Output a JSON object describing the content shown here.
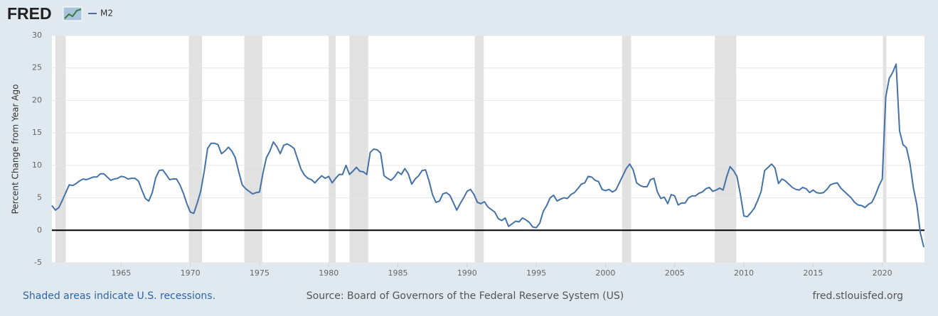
{
  "chart_data": {
    "type": "line",
    "brand": "FRED",
    "y_label": "Percent Change from Year Ago",
    "footer_left": "Shaded areas indicate U.S. recessions.",
    "footer_center": "Source: Board of Governors of the Federal Reserve System (US)",
    "footer_right": "fred.stlouisfed.org",
    "xlim": [
      1960,
      2023.05
    ],
    "ylim": [
      -5,
      30
    ],
    "xticks": [
      1965,
      1970,
      1975,
      1980,
      1985,
      1990,
      1995,
      2000,
      2005,
      2010,
      2015,
      2020
    ],
    "yticks": [
      -5,
      0,
      5,
      10,
      15,
      20,
      25,
      30
    ],
    "grid": true,
    "hline": 0,
    "recessions": [
      [
        1960.25,
        1961.0
      ],
      [
        1969.9,
        1970.85
      ],
      [
        1973.9,
        1975.2
      ],
      [
        1980.0,
        1980.5
      ],
      [
        1981.5,
        1982.85
      ],
      [
        1990.55,
        1991.2
      ],
      [
        2001.2,
        2001.85
      ],
      [
        2007.9,
        2009.45
      ],
      [
        2020.05,
        2020.3
      ]
    ],
    "x": [
      1960,
      1960.25,
      1960.5,
      1960.75,
      1961,
      1961.25,
      1961.5,
      1961.75,
      1962,
      1962.25,
      1962.5,
      1962.75,
      1963,
      1963.25,
      1963.5,
      1963.75,
      1964,
      1964.25,
      1964.5,
      1964.75,
      1965,
      1965.25,
      1965.5,
      1965.75,
      1966,
      1966.25,
      1966.5,
      1966.75,
      1967,
      1967.25,
      1967.5,
      1967.75,
      1968,
      1968.25,
      1968.5,
      1968.75,
      1969,
      1969.25,
      1969.5,
      1969.75,
      1970,
      1970.25,
      1970.5,
      1970.75,
      1971,
      1971.25,
      1971.5,
      1971.75,
      1972,
      1972.25,
      1972.5,
      1972.75,
      1973,
      1973.25,
      1973.5,
      1973.75,
      1974,
      1974.25,
      1974.5,
      1974.75,
      1975,
      1975.25,
      1975.5,
      1975.75,
      1976,
      1976.25,
      1976.5,
      1976.75,
      1977,
      1977.25,
      1977.5,
      1977.75,
      1978,
      1978.25,
      1978.5,
      1978.75,
      1979,
      1979.25,
      1979.5,
      1979.75,
      1980,
      1980.25,
      1980.5,
      1980.75,
      1981,
      1981.25,
      1981.5,
      1981.75,
      1982,
      1982.25,
      1982.5,
      1982.75,
      1983,
      1983.25,
      1983.5,
      1983.75,
      1984,
      1984.25,
      1984.5,
      1984.75,
      1985,
      1985.25,
      1985.5,
      1985.75,
      1986,
      1986.25,
      1986.5,
      1986.75,
      1987,
      1987.25,
      1987.5,
      1987.75,
      1988,
      1988.25,
      1988.5,
      1988.75,
      1989,
      1989.25,
      1989.5,
      1989.75,
      1990,
      1990.25,
      1990.5,
      1990.75,
      1991,
      1991.25,
      1991.5,
      1991.75,
      1992,
      1992.25,
      1992.5,
      1992.75,
      1993,
      1993.25,
      1993.5,
      1993.75,
      1994,
      1994.25,
      1994.5,
      1994.75,
      1995,
      1995.25,
      1995.5,
      1995.75,
      1996,
      1996.25,
      1996.5,
      1996.75,
      1997,
      1997.25,
      1997.5,
      1997.75,
      1998,
      1998.25,
      1998.5,
      1998.75,
      1999,
      1999.25,
      1999.5,
      1999.75,
      2000,
      2000.25,
      2000.5,
      2000.75,
      2001,
      2001.25,
      2001.5,
      2001.75,
      2002,
      2002.25,
      2002.5,
      2002.75,
      2003,
      2003.25,
      2003.5,
      2003.75,
      2004,
      2004.25,
      2004.5,
      2004.75,
      2005,
      2005.25,
      2005.5,
      2005.75,
      2006,
      2006.25,
      2006.5,
      2006.75,
      2007,
      2007.25,
      2007.5,
      2007.75,
      2008,
      2008.25,
      2008.5,
      2008.75,
      2009,
      2009.25,
      2009.5,
      2009.75,
      2010,
      2010.25,
      2010.5,
      2010.75,
      2011,
      2011.25,
      2011.5,
      2011.75,
      2012,
      2012.25,
      2012.5,
      2012.75,
      2013,
      2013.25,
      2013.5,
      2013.75,
      2014,
      2014.25,
      2014.5,
      2014.75,
      2015,
      2015.25,
      2015.5,
      2015.75,
      2016,
      2016.25,
      2016.5,
      2016.75,
      2017,
      2017.25,
      2017.5,
      2017.75,
      2018,
      2018.25,
      2018.5,
      2018.75,
      2019,
      2019.25,
      2019.5,
      2019.75,
      2020,
      2020.25,
      2020.5,
      2020.75,
      2021,
      2021.25,
      2021.5,
      2021.75,
      2022,
      2022.25,
      2022.5,
      2022.75,
      2023
    ],
    "series": [
      {
        "name": "M2",
        "color": "#4572a7",
        "values": [
          3.8,
          3.1,
          3.5,
          4.6,
          5.8,
          7.0,
          6.9,
          7.2,
          7.6,
          7.9,
          7.8,
          8.0,
          8.2,
          8.2,
          8.7,
          8.7,
          8.2,
          7.7,
          7.9,
          8.0,
          8.3,
          8.2,
          7.9,
          8.0,
          8.0,
          7.6,
          6.2,
          4.9,
          4.5,
          5.8,
          8.1,
          9.2,
          9.3,
          8.6,
          7.8,
          7.9,
          7.9,
          7.0,
          5.7,
          4.1,
          2.8,
          2.6,
          4.2,
          6.0,
          9.0,
          12.6,
          13.4,
          13.4,
          13.2,
          11.8,
          12.2,
          12.8,
          12.2,
          11.2,
          9.0,
          7.0,
          6.4,
          6.0,
          5.6,
          5.8,
          5.9,
          8.8,
          11.2,
          12.2,
          13.6,
          12.9,
          11.8,
          13.1,
          13.3,
          13.0,
          12.6,
          11.0,
          9.4,
          8.5,
          8.0,
          7.8,
          7.3,
          7.9,
          8.4,
          8.0,
          8.3,
          7.3,
          8.0,
          8.6,
          8.6,
          10.0,
          8.6,
          9.1,
          9.7,
          9.1,
          9.0,
          8.6,
          12.0,
          12.5,
          12.4,
          11.9,
          8.4,
          8.0,
          7.7,
          8.2,
          9.0,
          8.6,
          9.5,
          8.7,
          7.1,
          7.9,
          8.4,
          9.2,
          9.3,
          7.6,
          5.5,
          4.3,
          4.5,
          5.6,
          5.8,
          5.4,
          4.3,
          3.1,
          4.1,
          5.0,
          6.0,
          6.3,
          5.5,
          4.3,
          4.1,
          4.4,
          3.6,
          3.2,
          2.8,
          1.8,
          1.5,
          1.9,
          0.6,
          1.0,
          1.4,
          1.3,
          1.9,
          1.6,
          1.2,
          0.5,
          0.4,
          1.1,
          2.9,
          3.8,
          5.0,
          5.4,
          4.5,
          4.8,
          5.0,
          4.9,
          5.5,
          5.8,
          6.4,
          7.1,
          7.3,
          8.3,
          8.2,
          7.7,
          7.5,
          6.3,
          6.1,
          6.3,
          5.9,
          6.2,
          7.3,
          8.4,
          9.5,
          10.2,
          9.3,
          7.3,
          6.9,
          6.7,
          6.7,
          7.8,
          8.0,
          5.9,
          4.9,
          5.1,
          4.1,
          5.5,
          5.3,
          3.9,
          4.2,
          4.2,
          5.0,
          5.3,
          5.3,
          5.7,
          5.9,
          6.4,
          6.6,
          6.0,
          6.2,
          6.5,
          6.2,
          8.2,
          9.8,
          9.2,
          8.3,
          5.5,
          2.2,
          2.1,
          2.7,
          3.4,
          4.6,
          6.0,
          9.2,
          9.7,
          10.2,
          9.6,
          7.2,
          7.9,
          7.6,
          7.1,
          6.6,
          6.3,
          6.2,
          6.6,
          6.4,
          5.8,
          6.2,
          5.8,
          5.7,
          5.8,
          6.3,
          7.0,
          7.2,
          7.3,
          6.5,
          6.0,
          5.5,
          5.0,
          4.3,
          3.9,
          3.8,
          3.5,
          4.0,
          4.3,
          5.4,
          6.8,
          7.9,
          20.5,
          23.4,
          24.3,
          25.6,
          15.3,
          13.2,
          12.7,
          10.3,
          6.5,
          3.9,
          -0.4,
          -2.6
        ]
      }
    ]
  }
}
